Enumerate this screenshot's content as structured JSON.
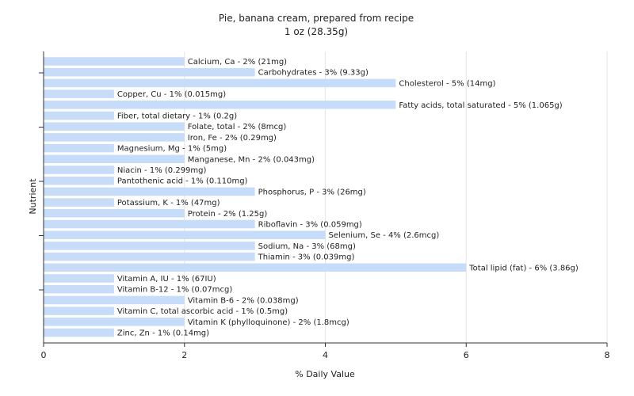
{
  "chart_data": {
    "type": "bar",
    "orientation": "horizontal",
    "title": "Pie, banana cream, prepared from recipe",
    "subtitle": "1 oz (28.35g)",
    "xlabel": "% Daily Value",
    "ylabel": "Nutrient",
    "xlim": [
      0,
      8
    ],
    "xticks": [
      "0",
      "2",
      "4",
      "6",
      "8"
    ],
    "grid": true,
    "bar_color": "#c6dcf8",
    "categories": [
      "Calcium, Ca",
      "Carbohydrates",
      "Cholesterol",
      "Copper, Cu",
      "Fatty acids, total saturated",
      "Fiber, total dietary",
      "Folate, total",
      "Iron, Fe",
      "Magnesium, Mg",
      "Manganese, Mn",
      "Niacin",
      "Pantothenic acid",
      "Phosphorus, P",
      "Potassium, K",
      "Protein",
      "Riboflavin",
      "Selenium, Se",
      "Sodium, Na",
      "Thiamin",
      "Total lipid (fat)",
      "Vitamin A, IU",
      "Vitamin B-12",
      "Vitamin B-6",
      "Vitamin C, total ascorbic acid",
      "Vitamin K (phylloquinone)",
      "Zinc, Zn"
    ],
    "values": [
      2,
      3,
      5,
      1,
      5,
      1,
      2,
      2,
      1,
      2,
      1,
      1,
      3,
      1,
      2,
      3,
      4,
      3,
      3,
      6,
      1,
      1,
      2,
      1,
      2,
      1
    ],
    "data_labels": [
      "Calcium, Ca - 2% (21mg)",
      "Carbohydrates - 3% (9.33g)",
      "Cholesterol - 5% (14mg)",
      "Copper, Cu - 1% (0.015mg)",
      "Fatty acids, total saturated - 5% (1.065g)",
      "Fiber, total dietary - 1% (0.2g)",
      "Folate, total - 2% (8mcg)",
      "Iron, Fe - 2% (0.29mg)",
      "Magnesium, Mg - 1% (5mg)",
      "Manganese, Mn - 2% (0.043mg)",
      "Niacin - 1% (0.299mg)",
      "Pantothenic acid - 1% (0.110mg)",
      "Phosphorus, P - 3% (26mg)",
      "Potassium, K - 1% (47mg)",
      "Protein - 2% (1.25g)",
      "Riboflavin - 3% (0.059mg)",
      "Selenium, Se - 4% (2.6mcg)",
      "Sodium, Na - 3% (68mg)",
      "Thiamin - 3% (0.039mg)",
      "Total lipid (fat) - 6% (3.86g)",
      "Vitamin A, IU - 1% (67IU)",
      "Vitamin B-12 - 1% (0.07mcg)",
      "Vitamin B-6 - 2% (0.038mg)",
      "Vitamin C, total ascorbic acid - 1% (0.5mg)",
      "Vitamin K (phylloquinone) - 2% (1.8mcg)",
      "Zinc, Zn - 1% (0.14mg)"
    ]
  }
}
